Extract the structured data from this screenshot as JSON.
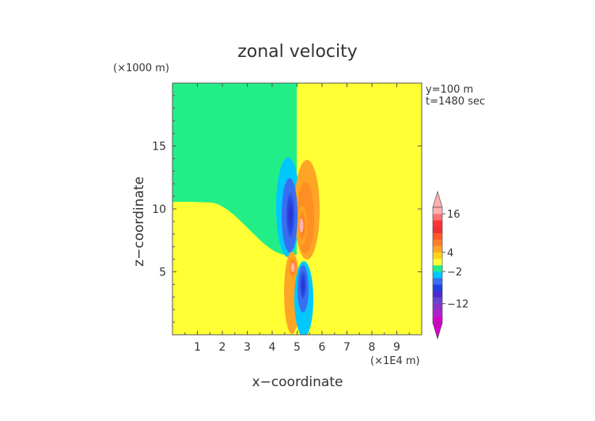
{
  "chart_data": {
    "type": "heatmap",
    "title": "zonal velocity",
    "xlabel": "x−coordinate",
    "ylabel": "z−coordinate",
    "x_scale_note": "(×1E4 m)",
    "y_scale_note": "(×1000 m)",
    "annotations": [
      "y=100 m",
      "t=1480 sec"
    ],
    "xlim": [
      0,
      10
    ],
    "ylim": [
      0,
      20
    ],
    "x_ticks": [
      1,
      2,
      3,
      4,
      5,
      6,
      7,
      8,
      9
    ],
    "y_ticks": [
      5,
      10,
      15
    ],
    "colorbar": {
      "tick_labels": [
        "16",
        "4",
        "−2",
        "−12"
      ],
      "levels": [
        -18,
        -16,
        -14,
        -12,
        -10,
        -8,
        -6,
        -4,
        -2,
        0,
        2,
        4,
        6,
        8,
        10,
        12,
        14,
        16,
        18
      ],
      "colors": [
        "#d400c8",
        "#b020c8",
        "#8a30c8",
        "#6a40d0",
        "#4a2ad0",
        "#2040e0",
        "#3a6ef0",
        "#00c8ff",
        "#22ee88",
        "#ffff33",
        "#ffd21a",
        "#ffa526",
        "#ff7f2a",
        "#ff5a2a",
        "#f03030",
        "#ff3333",
        "#ff7070",
        "#ffb0b0"
      ]
    },
    "features": [
      {
        "name": "background upper-left",
        "x": [
          0,
          5
        ],
        "z": [
          11,
          20
        ],
        "value": -1
      },
      {
        "name": "background upper-right",
        "x": [
          5,
          10
        ],
        "z": [
          11,
          20
        ],
        "value": 1
      },
      {
        "name": "negative core upper",
        "x": 4.7,
        "z": 9.5,
        "value": -12
      },
      {
        "name": "positive core upper",
        "x": 5.2,
        "z": 8.8,
        "value": 16
      },
      {
        "name": "positive core lower",
        "x": 4.8,
        "z": 5.6,
        "value": 16
      },
      {
        "name": "negative core lower",
        "x": 5.3,
        "z": 4.8,
        "value": -12
      }
    ],
    "grid": false
  }
}
